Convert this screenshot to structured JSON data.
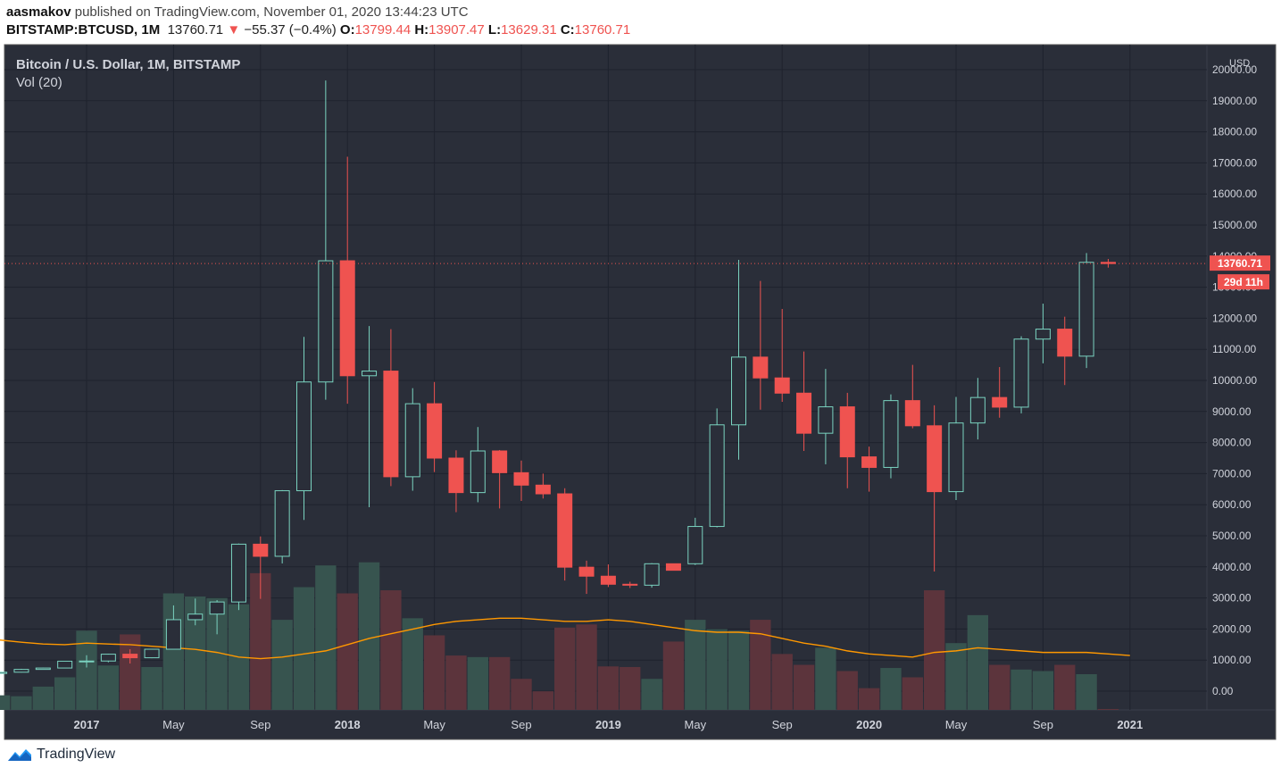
{
  "header": {
    "author": "aasmakov",
    "published_text": "published on TradingView.com, November 01, 2020 13:44:23 UTC",
    "symbol": "BITSTAMP:BTCUSD, 1M",
    "last": "13760.71",
    "change": "−55.37 (−0.4%)",
    "o_label": "O:",
    "o": "13799.44",
    "h_label": "H:",
    "h": "13907.47",
    "l_label": "L:",
    "l": "13629.31",
    "c_label": "C:",
    "c": "13760.71"
  },
  "footer": {
    "brand": "TradingView"
  },
  "colors": {
    "bg": "#2a2e39",
    "up": "#26a69a",
    "down": "#ef5350",
    "ma": "#ff9800",
    "grid": "#1e222d"
  },
  "chart_data": {
    "type": "candlestick",
    "title": "Bitcoin / U.S. Dollar, 1M, BITSTAMP",
    "volume_label": "Vol (20)",
    "currency": "USD",
    "price_badge": "13760.71",
    "countdown_badge": "29d 11h",
    "ylim": [
      -500,
      20500
    ],
    "yticks": [
      0,
      1000,
      2000,
      3000,
      4000,
      5000,
      6000,
      7000,
      8000,
      9000,
      10000,
      11000,
      12000,
      13000,
      14000,
      15000,
      16000,
      17000,
      18000,
      19000,
      20000
    ],
    "xticks": [
      {
        "month": 0,
        "label": "2017",
        "bold": true
      },
      {
        "month": 4,
        "label": "May",
        "bold": false
      },
      {
        "month": 8,
        "label": "Sep",
        "bold": false
      },
      {
        "month": 12,
        "label": "2018",
        "bold": true
      },
      {
        "month": 16,
        "label": "May",
        "bold": false
      },
      {
        "month": 20,
        "label": "Sep",
        "bold": false
      },
      {
        "month": 24,
        "label": "2019",
        "bold": true
      },
      {
        "month": 28,
        "label": "May",
        "bold": false
      },
      {
        "month": 32,
        "label": "Sep",
        "bold": false
      },
      {
        "month": 36,
        "label": "2020",
        "bold": true
      },
      {
        "month": 40,
        "label": "May",
        "bold": false
      },
      {
        "month": 44,
        "label": "Sep",
        "bold": false
      },
      {
        "month": 48,
        "label": "2021",
        "bold": true
      }
    ],
    "first_month": -4,
    "candles": [
      {
        "m": "2016-09",
        "o": 570,
        "h": 630,
        "l": 560,
        "c": 610,
        "vol": 470
      },
      {
        "m": "2016-10",
        "o": 610,
        "h": 720,
        "l": 600,
        "c": 700,
        "vol": 440
      },
      {
        "m": "2016-11",
        "o": 700,
        "h": 755,
        "l": 690,
        "c": 745,
        "vol": 750
      },
      {
        "m": "2016-12",
        "o": 745,
        "h": 975,
        "l": 740,
        "c": 965,
        "vol": 1050
      },
      {
        "m": "2017-01",
        "o": 965,
        "h": 1155,
        "l": 760,
        "c": 970,
        "vol": 2550
      },
      {
        "m": "2017-02",
        "o": 970,
        "h": 1200,
        "l": 930,
        "c": 1190,
        "vol": 1430
      },
      {
        "m": "2017-03",
        "o": 1190,
        "h": 1350,
        "l": 890,
        "c": 1075,
        "vol": 2430
      },
      {
        "m": "2017-04",
        "o": 1075,
        "h": 1350,
        "l": 1060,
        "c": 1350,
        "vol": 1380
      },
      {
        "m": "2017-05",
        "o": 1350,
        "h": 2760,
        "l": 1350,
        "c": 2300,
        "vol": 3750
      },
      {
        "m": "2017-06",
        "o": 2300,
        "h": 2980,
        "l": 2120,
        "c": 2480,
        "vol": 3650
      },
      {
        "m": "2017-07",
        "o": 2480,
        "h": 2930,
        "l": 1830,
        "c": 2870,
        "vol": 3600
      },
      {
        "m": "2017-08",
        "o": 2870,
        "h": 4750,
        "l": 2610,
        "c": 4730,
        "vol": 3400
      },
      {
        "m": "2017-09",
        "o": 4730,
        "h": 4980,
        "l": 2970,
        "c": 4340,
        "vol": 4400
      },
      {
        "m": "2017-10",
        "o": 4340,
        "h": 6470,
        "l": 4110,
        "c": 6450,
        "vol": 2900
      },
      {
        "m": "2017-11",
        "o": 6450,
        "h": 11400,
        "l": 5510,
        "c": 9950,
        "vol": 3950
      },
      {
        "m": "2017-12",
        "o": 9950,
        "h": 19650,
        "l": 9380,
        "c": 13850,
        "vol": 4650
      },
      {
        "m": "2018-01",
        "o": 13850,
        "h": 17200,
        "l": 9250,
        "c": 10150,
        "vol": 3750
      },
      {
        "m": "2018-02",
        "o": 10150,
        "h": 11750,
        "l": 5920,
        "c": 10300,
        "vol": 4750
      },
      {
        "m": "2018-03",
        "o": 10300,
        "h": 11650,
        "l": 6600,
        "c": 6900,
        "vol": 3850
      },
      {
        "m": "2018-04",
        "o": 6900,
        "h": 9750,
        "l": 6450,
        "c": 9250,
        "vol": 2950
      },
      {
        "m": "2018-05",
        "o": 9250,
        "h": 9950,
        "l": 7050,
        "c": 7500,
        "vol": 2400
      },
      {
        "m": "2018-06",
        "o": 7500,
        "h": 7750,
        "l": 5760,
        "c": 6390,
        "vol": 1750
      },
      {
        "m": "2018-07",
        "o": 6390,
        "h": 8500,
        "l": 6080,
        "c": 7730,
        "vol": 1700
      },
      {
        "m": "2018-08",
        "o": 7730,
        "h": 7760,
        "l": 5880,
        "c": 7030,
        "vol": 1700
      },
      {
        "m": "2018-09",
        "o": 7030,
        "h": 7420,
        "l": 6120,
        "c": 6630,
        "vol": 1000
      },
      {
        "m": "2018-10",
        "o": 6630,
        "h": 7000,
        "l": 6200,
        "c": 6350,
        "vol": 600
      },
      {
        "m": "2018-11",
        "o": 6350,
        "h": 6530,
        "l": 3560,
        "c": 3990,
        "vol": 2650
      },
      {
        "m": "2018-12",
        "o": 3990,
        "h": 4200,
        "l": 3130,
        "c": 3700,
        "vol": 2750
      },
      {
        "m": "2019-01",
        "o": 3700,
        "h": 4080,
        "l": 3350,
        "c": 3440,
        "vol": 1400
      },
      {
        "m": "2019-02",
        "o": 3440,
        "h": 3520,
        "l": 3320,
        "c": 3410,
        "vol": 1380
      },
      {
        "m": "2019-03",
        "o": 3410,
        "h": 4120,
        "l": 3330,
        "c": 4100,
        "vol": 1000
      },
      {
        "m": "2019-04",
        "o": 4100,
        "h": 4100,
        "l": 3890,
        "c": 3890,
        "vol": 2200
      },
      {
        "m": "2019-05",
        "o": 4100,
        "h": 5580,
        "l": 4060,
        "c": 5300,
        "vol": 2900
      },
      {
        "m": "2019-06",
        "o": 5300,
        "h": 9100,
        "l": 5270,
        "c": 8570,
        "vol": 2600
      },
      {
        "m": "2019-07",
        "o": 8570,
        "h": 13880,
        "l": 7450,
        "c": 10750,
        "vol": 2550
      },
      {
        "m": "2019-08",
        "o": 10750,
        "h": 13200,
        "l": 9060,
        "c": 10080,
        "vol": 2900
      },
      {
        "m": "2019-09",
        "o": 10080,
        "h": 12300,
        "l": 9310,
        "c": 9590,
        "vol": 1800
      },
      {
        "m": "2019-10",
        "o": 9590,
        "h": 10930,
        "l": 7730,
        "c": 8300,
        "vol": 1450
      },
      {
        "m": "2019-11",
        "o": 8300,
        "h": 10370,
        "l": 7300,
        "c": 9150,
        "vol": 2000
      },
      {
        "m": "2019-12",
        "o": 9150,
        "h": 9600,
        "l": 6530,
        "c": 7540,
        "vol": 1250
      },
      {
        "m": "2020-01",
        "o": 7540,
        "h": 7870,
        "l": 6420,
        "c": 7200,
        "vol": 700
      },
      {
        "m": "2020-02",
        "o": 7200,
        "h": 9550,
        "l": 6850,
        "c": 9350,
        "vol": 1350
      },
      {
        "m": "2020-03",
        "o": 9350,
        "h": 10500,
        "l": 8460,
        "c": 8540,
        "vol": 1050
      },
      {
        "m": "2020-04",
        "o": 8540,
        "h": 9200,
        "l": 3850,
        "c": 6420,
        "vol": 3850
      },
      {
        "m": "2020-05",
        "o": 6420,
        "h": 9470,
        "l": 6150,
        "c": 8630,
        "vol": 2150
      },
      {
        "m": "2020-06",
        "o": 8630,
        "h": 10080,
        "l": 8100,
        "c": 9450,
        "vol": 3050
      },
      {
        "m": "2020-07",
        "o": 9450,
        "h": 10430,
        "l": 8800,
        "c": 9140,
        "vol": 1450
      },
      {
        "m": "2020-08",
        "o": 9140,
        "h": 11420,
        "l": 8940,
        "c": 11330,
        "vol": 1300
      },
      {
        "m": "2020-09",
        "o": 11330,
        "h": 12470,
        "l": 10550,
        "c": 11650,
        "vol": 1250
      },
      {
        "m": "2020-10",
        "o": 11650,
        "h": 12050,
        "l": 9850,
        "c": 10780,
        "vol": 1450
      },
      {
        "m": "2020-11",
        "o": 10780,
        "h": 14100,
        "l": 10400,
        "c": 13800,
        "vol": 1150
      },
      {
        "m": "2020-12",
        "o": 13799.44,
        "h": 13907.47,
        "l": 13629.31,
        "c": 13760.71,
        "vol": 30
      }
    ],
    "volume_ma_20": [
      2250,
      2180,
      2120,
      2100,
      2150,
      2120,
      2100,
      2050,
      2000,
      1950,
      1850,
      1700,
      1650,
      1700,
      1800,
      1900,
      2100,
      2300,
      2450,
      2600,
      2750,
      2850,
      2900,
      2950,
      2950,
      2900,
      2850,
      2850,
      2900,
      2850,
      2750,
      2650,
      2550,
      2500,
      2500,
      2450,
      2300,
      2150,
      2050,
      1900,
      1800,
      1750,
      1700,
      1850,
      1900,
      2000,
      1950,
      1900,
      1850,
      1850,
      1850,
      1800,
      1750
    ]
  }
}
